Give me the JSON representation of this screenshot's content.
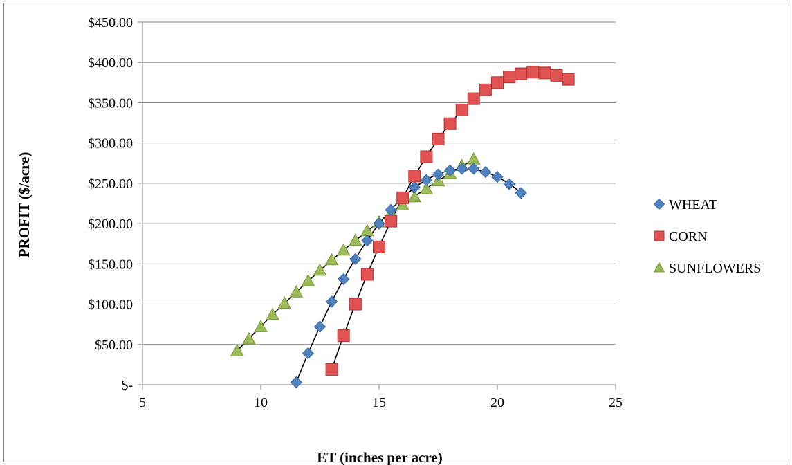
{
  "chart_data": {
    "type": "scatter",
    "title": "",
    "xlabel": "ET (inches per acre)",
    "ylabel": "PROFIT ($/acre)",
    "xlim": [
      5,
      25
    ],
    "ylim": [
      0,
      450
    ],
    "x_ticks": [
      "5",
      "10",
      "15",
      "20",
      "25"
    ],
    "y_ticks": [
      "$-",
      "$50.00",
      "$100.00",
      "$150.00",
      "$200.00",
      "$250.00",
      "$300.00",
      "$350.00",
      "$400.00",
      "$450.00"
    ],
    "grid": "horizontal",
    "legend_position": "right",
    "trendlines": true,
    "series": [
      {
        "name": "WHEAT",
        "marker": "diamond",
        "color": "#4f81bd",
        "x": [
          11.5,
          12,
          12.5,
          13,
          13.5,
          14,
          14.5,
          15,
          15.5,
          16,
          16.5,
          17,
          17.5,
          18,
          18.5,
          19,
          19.5,
          20,
          20.5,
          21
        ],
        "y": [
          3,
          39,
          72,
          103,
          131,
          156,
          179,
          200,
          217,
          232,
          245,
          254,
          261,
          266,
          268,
          268,
          264,
          258,
          249,
          238
        ]
      },
      {
        "name": "CORN",
        "marker": "square",
        "color": "#e15353",
        "x": [
          13,
          13.5,
          14,
          14.5,
          15,
          15.5,
          16,
          16.5,
          17,
          17.5,
          18,
          18.5,
          19,
          19.5,
          20,
          20.5,
          21,
          21.5,
          22,
          22.5,
          23
        ],
        "y": [
          19,
          61,
          100,
          137,
          171,
          203,
          232,
          259,
          283,
          305,
          324,
          341,
          355,
          366,
          375,
          382,
          386,
          388,
          387,
          384,
          379
        ]
      },
      {
        "name": "SUNFLOWERS",
        "marker": "triangle",
        "color": "#9bbb59",
        "x": [
          9,
          9.5,
          10,
          10.5,
          11,
          11.5,
          12,
          12.5,
          13,
          13.5,
          14,
          14.5,
          15,
          15.5,
          16,
          16.5,
          17,
          17.5,
          18,
          18.5,
          19
        ],
        "y": [
          42,
          57,
          72,
          87,
          101,
          115,
          129,
          142,
          155,
          167,
          179,
          191,
          202,
          213,
          223,
          233,
          243,
          253,
          262,
          272,
          280
        ]
      }
    ]
  }
}
